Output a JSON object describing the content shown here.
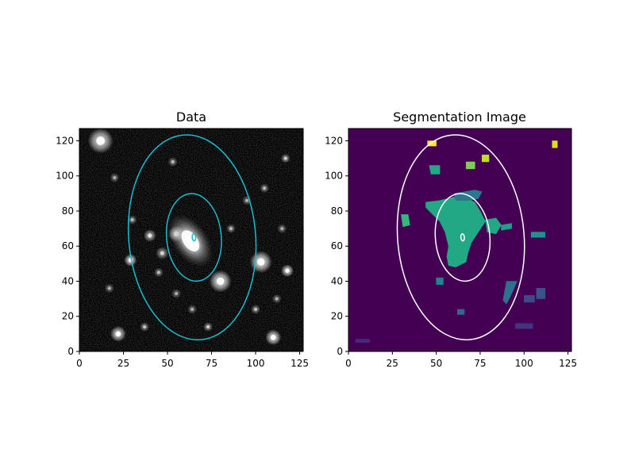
{
  "figure": {
    "background": "#ffffff"
  },
  "chart_data": [
    {
      "type": "image",
      "title": "Data",
      "xlim": [
        0,
        127
      ],
      "ylim": [
        0,
        127
      ],
      "xticks": [
        0,
        25,
        50,
        75,
        100,
        125
      ],
      "yticks": [
        0,
        20,
        40,
        60,
        80,
        100,
        120
      ],
      "colormap": "gray",
      "image_color": "#000000",
      "ellipses": [
        {
          "name": "outer",
          "cx": 64,
          "cy": 65,
          "width": 72,
          "height": 117,
          "angle_deg": 5,
          "color": "#17becf"
        },
        {
          "name": "middle",
          "cx": 65,
          "cy": 65,
          "width": 31,
          "height": 50,
          "angle_deg": 5,
          "color": "#17becf"
        },
        {
          "name": "inner",
          "cx": 65,
          "cy": 65,
          "width": 2,
          "height": 4,
          "angle_deg": 5,
          "color": "#17becf"
        }
      ],
      "galaxy": {
        "cx": 63,
        "cy": 63,
        "width": 20,
        "height": 34,
        "angle_deg": -35
      },
      "stars": [
        {
          "x": 12,
          "y": 120,
          "b": 0.95,
          "r": 4
        },
        {
          "x": 55,
          "y": 67,
          "b": 0.9,
          "r": 2.5
        },
        {
          "x": 80,
          "y": 40,
          "b": 1.0,
          "r": 3.5
        },
        {
          "x": 103,
          "y": 51,
          "b": 1.0,
          "r": 3.5
        },
        {
          "x": 118,
          "y": 46,
          "b": 0.9,
          "r": 2
        },
        {
          "x": 29,
          "y": 52,
          "b": 0.9,
          "r": 2
        },
        {
          "x": 40,
          "y": 66,
          "b": 0.7,
          "r": 2
        },
        {
          "x": 47,
          "y": 56,
          "b": 0.6,
          "r": 2
        },
        {
          "x": 22,
          "y": 10,
          "b": 0.9,
          "r": 2.5
        },
        {
          "x": 110,
          "y": 8,
          "b": 0.95,
          "r": 2.5
        },
        {
          "x": 73,
          "y": 14,
          "b": 0.6,
          "r": 1.5
        },
        {
          "x": 45,
          "y": 45,
          "b": 0.5,
          "r": 1.5
        },
        {
          "x": 30,
          "y": 75,
          "b": 0.5,
          "r": 1.5
        },
        {
          "x": 53,
          "y": 108,
          "b": 0.5,
          "r": 1.5
        },
        {
          "x": 105,
          "y": 93,
          "b": 0.5,
          "r": 1.5
        },
        {
          "x": 117,
          "y": 110,
          "b": 0.6,
          "r": 1.5
        },
        {
          "x": 100,
          "y": 24,
          "b": 0.55,
          "r": 1.5
        },
        {
          "x": 37,
          "y": 14,
          "b": 0.55,
          "r": 1.5
        },
        {
          "x": 17,
          "y": 36,
          "b": 0.45,
          "r": 1.5
        },
        {
          "x": 20,
          "y": 99,
          "b": 0.45,
          "r": 1.5
        },
        {
          "x": 55,
          "y": 33,
          "b": 0.45,
          "r": 1.5
        },
        {
          "x": 64,
          "y": 24,
          "b": 0.45,
          "r": 1.5
        },
        {
          "x": 86,
          "y": 70,
          "b": 0.5,
          "r": 1.5
        },
        {
          "x": 95,
          "y": 86,
          "b": 0.45,
          "r": 1.5
        },
        {
          "x": 115,
          "y": 70,
          "b": 0.45,
          "r": 1.5
        },
        {
          "x": 112,
          "y": 30,
          "b": 0.45,
          "r": 1.5
        }
      ]
    },
    {
      "type": "image",
      "title": "Segmentation Image",
      "xlim": [
        0,
        127
      ],
      "ylim": [
        0,
        127
      ],
      "xticks": [
        0,
        25,
        50,
        75,
        100,
        125
      ],
      "yticks": [
        0,
        20,
        40,
        60,
        80,
        100,
        120
      ],
      "colormap": "viridis",
      "image_color": "#440154",
      "ellipses": [
        {
          "name": "outer",
          "cx": 64,
          "cy": 65,
          "width": 72,
          "height": 117,
          "angle_deg": 5,
          "color": "#ffffff"
        },
        {
          "name": "middle",
          "cx": 65,
          "cy": 65,
          "width": 31,
          "height": 50,
          "angle_deg": 5,
          "color": "#ffffff"
        },
        {
          "name": "inner",
          "cx": 65,
          "cy": 65,
          "width": 2,
          "height": 4,
          "angle_deg": 5,
          "color": "#ffffff"
        }
      ],
      "segments": [
        {
          "label": "main-galaxy",
          "color": "#22a884",
          "polygon": [
            [
              44,
              85
            ],
            [
              52,
              86
            ],
            [
              60,
              88
            ],
            [
              68,
              87
            ],
            [
              72,
              85
            ],
            [
              75,
              80
            ],
            [
              78,
              74
            ],
            [
              74,
              68
            ],
            [
              70,
              62
            ],
            [
              68,
              56
            ],
            [
              67,
              51
            ],
            [
              61,
              48
            ],
            [
              57,
              49
            ],
            [
              56,
              54
            ],
            [
              57,
              60
            ],
            [
              55,
              68
            ],
            [
              52,
              74
            ],
            [
              48,
              78
            ],
            [
              44,
              82
            ]
          ]
        },
        {
          "label": "galaxy-arm",
          "color": "#2a788e",
          "polygon": [
            [
              60,
              90
            ],
            [
              66,
              91
            ],
            [
              72,
              92
            ],
            [
              76,
              91
            ],
            [
              74,
              87
            ],
            [
              68,
              86
            ],
            [
              61,
              86
            ]
          ]
        },
        {
          "label": "right-arm",
          "color": "#22a884",
          "polygon": [
            [
              78,
              75
            ],
            [
              84,
              76
            ],
            [
              87,
              72
            ],
            [
              84,
              67
            ],
            [
              79,
              68
            ]
          ]
        },
        {
          "label": "seg-left",
          "color": "#35b779",
          "polygon": [
            [
              30,
              78
            ],
            [
              34,
              78
            ],
            [
              35,
              72
            ],
            [
              31,
              71
            ]
          ]
        },
        {
          "label": "seg-top1",
          "color": "#22a884",
          "polygon": [
            [
              46,
              106
            ],
            [
              52,
              106
            ],
            [
              52,
              101
            ],
            [
              47,
              101
            ]
          ]
        },
        {
          "label": "seg-top2",
          "color": "#7ad151",
          "polygon": [
            [
              67,
              108
            ],
            [
              72,
              108
            ],
            [
              72,
              104
            ],
            [
              67,
              104
            ]
          ]
        },
        {
          "label": "seg-top3",
          "color": "#bddf26",
          "polygon": [
            [
              76,
              112
            ],
            [
              80,
              112
            ],
            [
              80,
              108
            ],
            [
              76,
              108
            ]
          ]
        },
        {
          "label": "seg-corner1",
          "color": "#fde725",
          "polygon": [
            [
              45,
              120
            ],
            [
              50,
              120
            ],
            [
              50,
              117
            ],
            [
              45,
              117
            ]
          ]
        },
        {
          "label": "seg-corner2",
          "color": "#d8e219",
          "polygon": [
            [
              116,
              120
            ],
            [
              119,
              120
            ],
            [
              119,
              116
            ],
            [
              116,
              116
            ]
          ]
        },
        {
          "label": "seg-right1",
          "color": "#1f9e89",
          "polygon": [
            [
              87,
              72
            ],
            [
              93,
              73
            ],
            [
              93,
              70
            ],
            [
              87,
              69
            ]
          ]
        },
        {
          "label": "seg-right2",
          "color": "#21918c",
          "polygon": [
            [
              104,
              68
            ],
            [
              112,
              68
            ],
            [
              112,
              65
            ],
            [
              104,
              65
            ]
          ]
        },
        {
          "label": "seg-small1",
          "color": "#26828e",
          "polygon": [
            [
              50,
              42
            ],
            [
              54,
              42
            ],
            [
              54,
              38
            ],
            [
              50,
              38
            ]
          ]
        },
        {
          "label": "seg-low1",
          "color": "#2c728e",
          "polygon": [
            [
              90,
              40
            ],
            [
              96,
              40
            ],
            [
              93,
              33
            ],
            [
              90,
              27
            ],
            [
              88,
              29
            ]
          ]
        },
        {
          "label": "seg-low2",
          "color": "#3b528b",
          "polygon": [
            [
              107,
              36
            ],
            [
              112,
              36
            ],
            [
              112,
              30
            ],
            [
              107,
              30
            ]
          ]
        },
        {
          "label": "seg-low3",
          "color": "#3e4989",
          "polygon": [
            [
              100,
              32
            ],
            [
              106,
              32
            ],
            [
              106,
              28
            ],
            [
              100,
              28
            ]
          ]
        },
        {
          "label": "seg-bottom1",
          "color": "#46327e",
          "polygon": [
            [
              95,
              16
            ],
            [
              105,
              16
            ],
            [
              105,
              13
            ],
            [
              95,
              13
            ]
          ]
        },
        {
          "label": "seg-bottom2",
          "color": "#31688e",
          "polygon": [
            [
              62,
              24
            ],
            [
              66,
              24
            ],
            [
              66,
              21
            ],
            [
              62,
              21
            ]
          ]
        },
        {
          "label": "seg-bottom3",
          "color": "#482878",
          "polygon": [
            [
              4,
              7
            ],
            [
              12,
              7
            ],
            [
              12,
              5
            ],
            [
              4,
              5
            ]
          ]
        }
      ]
    }
  ]
}
